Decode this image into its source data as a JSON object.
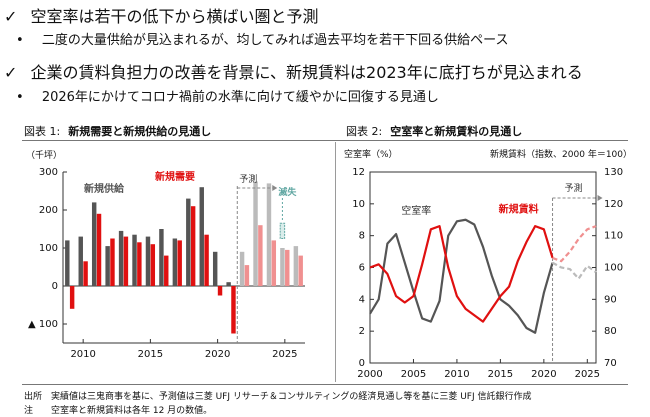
{
  "bullets": [
    {
      "mark": "✓",
      "text": "空室率は若干の低下から横ばい圏と予測"
    },
    {
      "mark": "•",
      "text": "二度の大量供給が見込まれるが、均してみれば過去平均を若干下回る供給ペース"
    },
    {
      "mark": "✓",
      "text": "企業の賃料負担力の改善を背景に、新規賃料は2023年に底打ちが見込まれる"
    },
    {
      "mark": "•",
      "text": "2026年にかけてコロナ禍前の水準に向けて緩やかに回復する見通し"
    }
  ],
  "footer": {
    "source": "出所　実績値は三鬼商事を基に、予測値は三菱 UFJ リサーチ＆コンサルティングの経済見通し等を基に三菱 UFJ 信託銀行作成",
    "note": "注　　空室率と新規賃料は各年 12 月の数値。"
  },
  "chart_data": [
    {
      "type": "bar",
      "figure_label": "図表 1:",
      "title": "新規需要と新規供給の見通し",
      "unit_label": "（千坪）",
      "x": [
        2009,
        2010,
        2011,
        2012,
        2013,
        2014,
        2015,
        2016,
        2017,
        2018,
        2019,
        2020,
        2021,
        2022,
        2023,
        2024,
        2025,
        2026
      ],
      "x_ticks": [
        {
          "value": 2010,
          "label": "2010"
        },
        {
          "value": 2015,
          "label": "2015"
        },
        {
          "value": 2020,
          "label": "2020"
        },
        {
          "value": 2025,
          "label": "2025"
        }
      ],
      "ylim": [
        -150,
        300
      ],
      "y_ticks": [
        {
          "value": 300,
          "label": "300"
        },
        {
          "value": 200,
          "label": "200"
        },
        {
          "value": 100,
          "label": "100"
        },
        {
          "value": 0,
          "label": "0"
        },
        {
          "value": -100,
          "label": "▲ 100"
        }
      ],
      "forecast_start": 2022,
      "forecast_label": "予測",
      "series": [
        {
          "name": "新規供給",
          "color": "#555555",
          "forecast_color": "#bbbbbb",
          "values": [
            120,
            130,
            220,
            105,
            145,
            135,
            130,
            150,
            125,
            230,
            260,
            90,
            10,
            90,
            275,
            270,
            100,
            105
          ]
        },
        {
          "name": "新規需要",
          "color": "#e01010",
          "forecast_color": "#f09090",
          "values": [
            -60,
            65,
            190,
            125,
            130,
            115,
            110,
            80,
            120,
            210,
            135,
            -25,
            -125,
            55,
            160,
            120,
            95,
            80
          ]
        }
      ],
      "annotation": {
        "label": "滅失",
        "year": 2025,
        "top": 165,
        "bottom": 125,
        "color": "#60a7a2"
      }
    },
    {
      "type": "line",
      "figure_label": "図表 2:",
      "title": "空室率と新規賃料の見通し",
      "y_left_label": "空室率（%）",
      "y_right_label": "新規賃料（指数、2000 年＝100）",
      "xlim": [
        2000,
        2026
      ],
      "x_ticks": [
        2000,
        2005,
        2010,
        2015,
        2020,
        2025
      ],
      "y_left_lim": [
        0,
        12
      ],
      "y_left_ticks": [
        0,
        2,
        4,
        6,
        8,
        10,
        12
      ],
      "y_right_lim": [
        70,
        130
      ],
      "y_right_ticks": [
        70,
        80,
        90,
        100,
        110,
        120,
        130
      ],
      "forecast_start": 2021,
      "forecast_label": "予測",
      "series": [
        {
          "name": "空室率",
          "axis": "left",
          "color": "#555555",
          "forecast_color": "#bbbbbb",
          "x": [
            2000,
            2001,
            2002,
            2003,
            2004,
            2005,
            2006,
            2007,
            2008,
            2009,
            2010,
            2011,
            2012,
            2013,
            2014,
            2015,
            2016,
            2017,
            2018,
            2019,
            2020,
            2021,
            2022,
            2023,
            2024,
            2025,
            2026
          ],
          "values": [
            3.1,
            4.0,
            7.5,
            8.1,
            6.3,
            4.5,
            2.8,
            2.6,
            3.9,
            8.0,
            8.9,
            9.0,
            8.7,
            7.3,
            5.5,
            4.0,
            3.6,
            3.0,
            2.2,
            1.9,
            4.4,
            6.3,
            6.0,
            5.9,
            5.3,
            6.1,
            5.7
          ]
        },
        {
          "name": "新規賃料",
          "axis": "right",
          "color": "#e01010",
          "forecast_color": "#f09090",
          "x": [
            2000,
            2001,
            2002,
            2003,
            2004,
            2005,
            2006,
            2007,
            2008,
            2009,
            2010,
            2011,
            2012,
            2013,
            2014,
            2015,
            2016,
            2017,
            2018,
            2019,
            2020,
            2021,
            2022,
            2023,
            2024,
            2025,
            2026
          ],
          "values": [
            100,
            101,
            98,
            91,
            89,
            91,
            101,
            112,
            113,
            100,
            91,
            87,
            85,
            83,
            87,
            91,
            94,
            102,
            108,
            113,
            112,
            103,
            102,
            105,
            109,
            112,
            113
          ]
        }
      ]
    }
  ]
}
